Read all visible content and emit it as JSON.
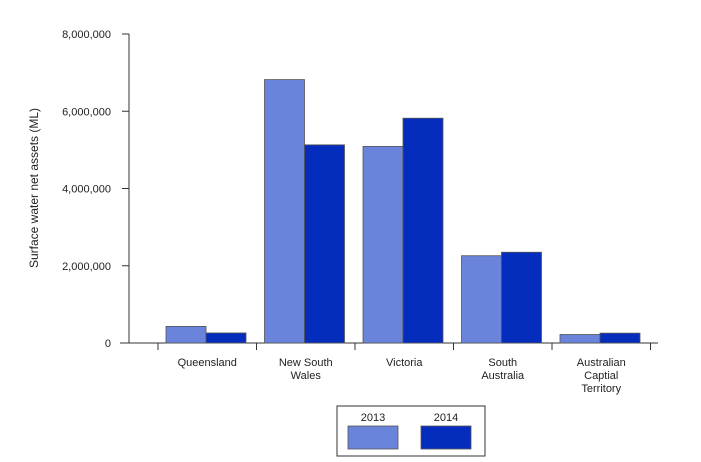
{
  "chart_data": {
    "type": "bar",
    "title": "",
    "xlabel": "",
    "ylabel": "Surface water net assets (ML)",
    "ylim": [
      0,
      8000000
    ],
    "yticks": [
      0,
      2000000,
      4000000,
      6000000,
      8000000
    ],
    "ytick_labels": [
      "0",
      "2,000,000",
      "4,000,000",
      "6,000,000",
      "8,000,000"
    ],
    "categories": [
      [
        "Queensland"
      ],
      [
        "New South",
        "Wales"
      ],
      [
        "Victoria"
      ],
      [
        "South",
        "Australia"
      ],
      [
        "Australian",
        "Captial",
        "Territory"
      ]
    ],
    "series": [
      {
        "name": "2013",
        "color": "#6b84db",
        "values": [
          430000,
          6820000,
          5090000,
          2260000,
          220000
        ]
      },
      {
        "name": "2014",
        "color": "#052dbd",
        "values": [
          260000,
          5130000,
          5820000,
          2350000,
          255000
        ]
      }
    ],
    "grid": false,
    "legend_position": "bottom-center"
  }
}
